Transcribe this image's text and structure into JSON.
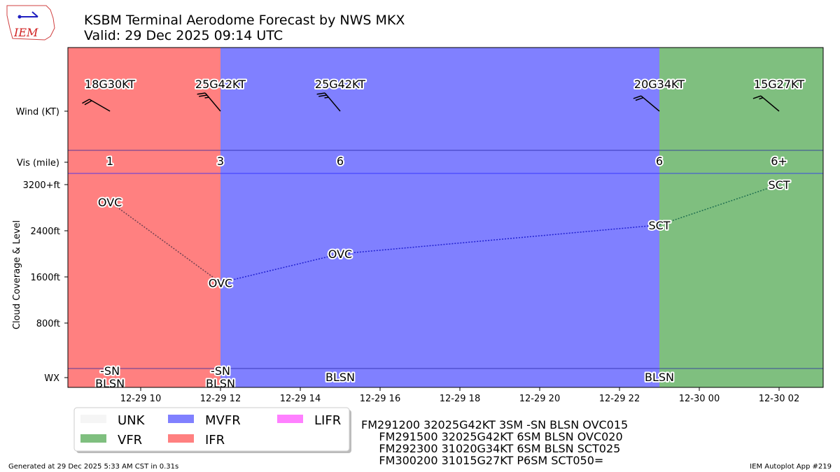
{
  "header": {
    "title": "KSBM Terminal Aerodome Forecast by NWS MKX",
    "subtitle": "Valid: 29 Dec 2025 09:14 UTC",
    "logo_text": "IEM"
  },
  "footer": {
    "left": "Generated at 29 Dec 2025 5:33 AM CST in 0.31s",
    "right": "IEM Autoplot App #219"
  },
  "taf_text": [
    "FM291200 32025G42KT 3SM -SN BLSN OVC015",
    "     FM291500 32025G42KT 6SM BLSN OVC020",
    "     FM292300 31020G34KT 6SM BLSN SCT025",
    "     FM300200 31015G27KT P6SM SCT050="
  ],
  "legend": [
    {
      "label": "UNK",
      "color": "#f5f5f5"
    },
    {
      "label": "VFR",
      "color": "#7fbf7f"
    },
    {
      "label": "MVFR",
      "color": "#8080ff"
    },
    {
      "label": "IFR",
      "color": "#ff8080"
    },
    {
      "label": "LIFR",
      "color": "#ff80ff"
    }
  ],
  "chart_data": {
    "type": "timeline",
    "ylabel": "Cloud Coverage & Level",
    "row_labels": {
      "wind": "Wind (KT)",
      "vis": "Vis (mile)",
      "wx": "WX"
    },
    "y_ticks": [
      "800ft",
      "1600ft",
      "2400ft",
      "3200+ft"
    ],
    "y_tick_values": [
      800,
      1600,
      2400,
      3200
    ],
    "x_ticks": [
      "12-29 10",
      "12-29 12",
      "12-29 14",
      "12-29 16",
      "12-29 18",
      "12-29 20",
      "12-29 22",
      "12-30 00",
      "12-30 02"
    ],
    "x_tick_hours": [
      10,
      12,
      14,
      16,
      18,
      20,
      22,
      24,
      26
    ],
    "x_range_hours": [
      8.18,
      27.0
    ],
    "periods": [
      {
        "hour": 9.23,
        "category": "IFR",
        "color": "#ff8080",
        "wind": "18G30KT",
        "dir": 300,
        "speed": 18,
        "vis": "1",
        "cloud": "OVC",
        "level": 2900,
        "wx": [
          "-SN",
          "BLSN"
        ]
      },
      {
        "hour": 12,
        "category": "MVFR",
        "color": "#8080ff",
        "wind": "25G42KT",
        "dir": 320,
        "speed": 25,
        "vis": "3",
        "cloud": "OVC",
        "level": 1500,
        "wx": [
          "-SN",
          "BLSN"
        ]
      },
      {
        "hour": 15,
        "category": "MVFR",
        "color": "#8080ff",
        "wind": "25G42KT",
        "dir": 320,
        "speed": 25,
        "vis": "6",
        "cloud": "OVC",
        "level": 2000,
        "wx": [
          "BLSN"
        ]
      },
      {
        "hour": 23,
        "category": "VFR",
        "color": "#7fbf7f",
        "wind": "20G34KT",
        "dir": 310,
        "speed": 20,
        "vis": "6",
        "cloud": "SCT",
        "level": 2500,
        "wx": [
          "BLSN"
        ]
      },
      {
        "hour": 26,
        "category": "VFR",
        "color": "#7fbf7f",
        "wind": "15G27KT",
        "dir": 310,
        "speed": 15,
        "vis": "6+",
        "cloud": "SCT",
        "level": 5000,
        "wx": []
      }
    ]
  }
}
